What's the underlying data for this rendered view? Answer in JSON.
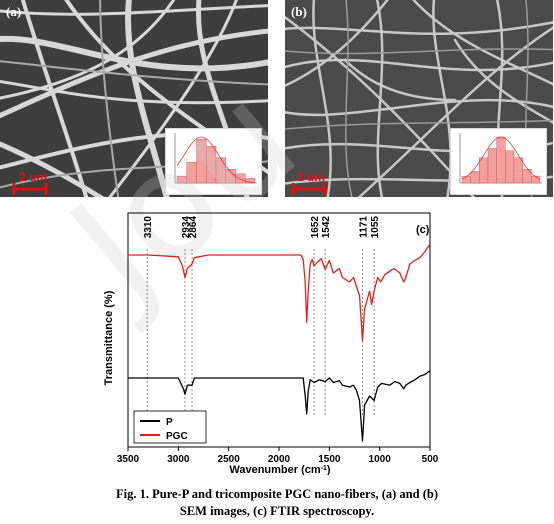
{
  "panels": {
    "a": {
      "letter": "(a)",
      "scale_bar": "2 um"
    },
    "b": {
      "letter": "(b)",
      "scale_bar": "2 um"
    },
    "c": {
      "letter": "(c)"
    }
  },
  "caption": {
    "line1": "Fig. 1. Pure-P and tricomposite PGC nano-fibers, (a) and (b)",
    "line2": "SEM images, (c) FTIR spectroscopy."
  },
  "watermark": "Jou",
  "chart_data": [
    {
      "type": "histogram",
      "panel": "a",
      "bin_heights": [
        0.15,
        0.45,
        0.95,
        0.8,
        0.55,
        0.3,
        0.2,
        0.1
      ],
      "fit": "normal"
    },
    {
      "type": "histogram",
      "panel": "b",
      "bin_heights": [
        0.15,
        0.25,
        0.55,
        0.75,
        1.0,
        0.7,
        0.55,
        0.3,
        0.15
      ],
      "fit": "normal"
    },
    {
      "type": "line",
      "panel": "c",
      "xlabel": "Wavenumber (cm",
      "xlabel_sup": "-1",
      "xlabel_end": ")",
      "ylabel": "Transmittance (%)",
      "xlim": [
        3500,
        500
      ],
      "x_ticks": [
        3500,
        3000,
        2500,
        2000,
        1500,
        1000,
        500
      ],
      "peak_labels": [
        3310,
        2934,
        2864,
        1652,
        1542,
        1171,
        1055
      ],
      "legend_position": "bottom-left",
      "colors": {
        "P": "#000000",
        "PGC": "#e02020"
      },
      "series": [
        {
          "name": "P",
          "baseline": 0,
          "points": [
            [
              3500,
              0
            ],
            [
              3300,
              0
            ],
            [
              3000,
              0
            ],
            [
              2950,
              -12
            ],
            [
              2934,
              -18
            ],
            [
              2910,
              -8
            ],
            [
              2864,
              -8
            ],
            [
              2840,
              0
            ],
            [
              2600,
              0
            ],
            [
              2000,
              0
            ],
            [
              1760,
              0
            ],
            [
              1740,
              -20
            ],
            [
              1725,
              -40
            ],
            [
              1710,
              -15
            ],
            [
              1690,
              -2
            ],
            [
              1650,
              -5
            ],
            [
              1600,
              -2
            ],
            [
              1542,
              -4
            ],
            [
              1500,
              0
            ],
            [
              1460,
              -5
            ],
            [
              1400,
              -3
            ],
            [
              1370,
              -8
            ],
            [
              1300,
              -10
            ],
            [
              1260,
              -8
            ],
            [
              1230,
              -14
            ],
            [
              1200,
              -25
            ],
            [
              1171,
              -70
            ],
            [
              1150,
              -30
            ],
            [
              1100,
              -20
            ],
            [
              1055,
              -25
            ],
            [
              1020,
              -10
            ],
            [
              980,
              -6
            ],
            [
              900,
              -8
            ],
            [
              850,
              -4
            ],
            [
              800,
              -6
            ],
            [
              760,
              -12
            ],
            [
              740,
              -8
            ],
            [
              700,
              -5
            ],
            [
              650,
              -2
            ],
            [
              600,
              2
            ],
            [
              550,
              4
            ],
            [
              500,
              8
            ]
          ]
        },
        {
          "name": "PGC",
          "baseline": 0,
          "points": [
            [
              3500,
              0
            ],
            [
              3300,
              0
            ],
            [
              3000,
              -2
            ],
            [
              2960,
              -12
            ],
            [
              2934,
              -25
            ],
            [
              2910,
              -15
            ],
            [
              2864,
              -10
            ],
            [
              2840,
              -3
            ],
            [
              2700,
              0
            ],
            [
              2000,
              0
            ],
            [
              1780,
              0
            ],
            [
              1760,
              -5
            ],
            [
              1740,
              -30
            ],
            [
              1725,
              -75
            ],
            [
              1710,
              -40
            ],
            [
              1690,
              -10
            ],
            [
              1670,
              -5
            ],
            [
              1652,
              -12
            ],
            [
              1620,
              -8
            ],
            [
              1580,
              -4
            ],
            [
              1542,
              -16
            ],
            [
              1500,
              -6
            ],
            [
              1460,
              -20
            ],
            [
              1400,
              -15
            ],
            [
              1370,
              -25
            ],
            [
              1300,
              -30
            ],
            [
              1260,
              -25
            ],
            [
              1230,
              -35
            ],
            [
              1200,
              -45
            ],
            [
              1171,
              -95
            ],
            [
              1150,
              -60
            ],
            [
              1100,
              -40
            ],
            [
              1080,
              -55
            ],
            [
              1055,
              -40
            ],
            [
              1020,
              -25
            ],
            [
              990,
              -30
            ],
            [
              950,
              -22
            ],
            [
              900,
              -18
            ],
            [
              860,
              -15
            ],
            [
              800,
              -20
            ],
            [
              760,
              -30
            ],
            [
              740,
              -25
            ],
            [
              700,
              -10
            ],
            [
              650,
              -6
            ],
            [
              600,
              -3
            ],
            [
              550,
              4
            ],
            [
              500,
              12
            ]
          ]
        }
      ]
    }
  ]
}
